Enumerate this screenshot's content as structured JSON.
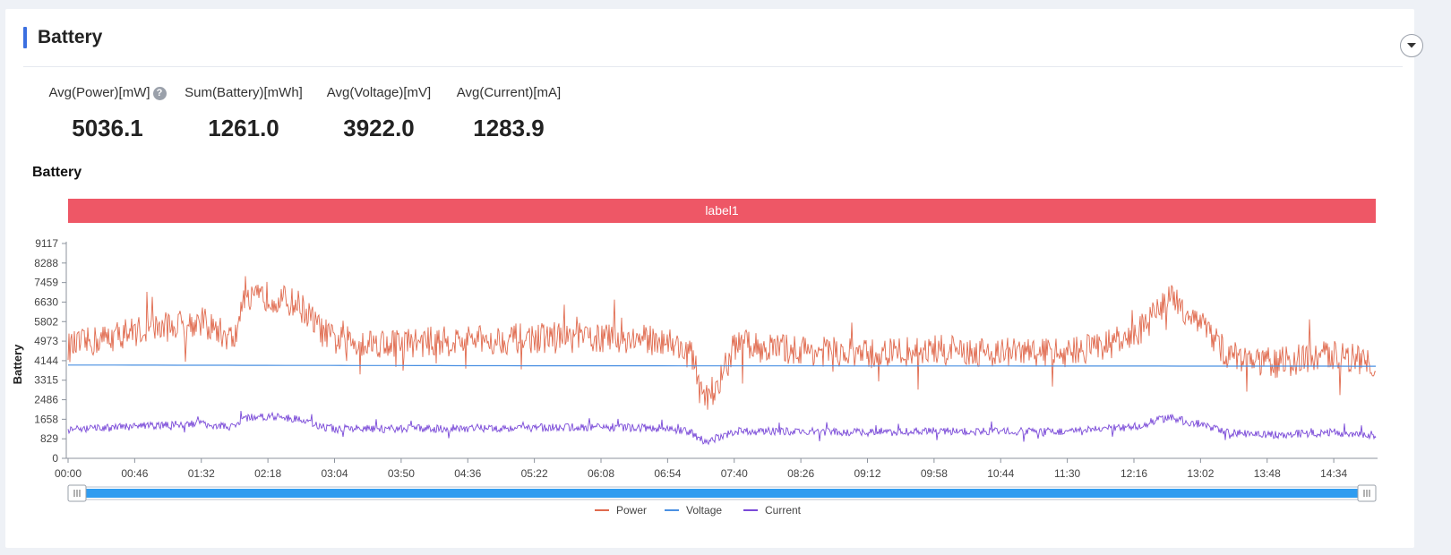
{
  "card": {
    "title": "Battery"
  },
  "stats": [
    {
      "label": "Avg(Power)[mW]",
      "value": "5036.1",
      "help": true
    },
    {
      "label": "Sum(Battery)[mWh]",
      "value": "1261.0"
    },
    {
      "label": "Avg(Voltage)[mV]",
      "value": "3922.0"
    },
    {
      "label": "Avg(Current)[mA]",
      "value": "1283.9"
    }
  ],
  "help_icon_glyph": "?",
  "chart_title": "Battery",
  "chart_data": {
    "type": "line",
    "title": "Battery",
    "ylabel": "Battery",
    "xlabel": "",
    "band_label": "label1",
    "band_color": "#ee5766",
    "y_ticks": [
      "0",
      "829",
      "1658",
      "2486",
      "3315",
      "4144",
      "4973",
      "5802",
      "6630",
      "7459",
      "8288",
      "9117"
    ],
    "ylim": [
      0,
      9117
    ],
    "x_ticks": [
      "00:00",
      "00:46",
      "01:32",
      "02:18",
      "03:04",
      "03:50",
      "04:36",
      "05:22",
      "06:08",
      "06:54",
      "07:40",
      "08:26",
      "09:12",
      "09:58",
      "10:44",
      "11:30",
      "12:16",
      "13:02",
      "13:48",
      "14:34"
    ],
    "x_range_minutes": [
      0,
      903
    ],
    "legend": [
      "Power",
      "Voltage",
      "Current"
    ],
    "legend_position": "bottom-center",
    "grid": false,
    "series": [
      {
        "name": "Power",
        "color": "#e06a4e",
        "noise": 650,
        "minutes": [
          0,
          46,
          92,
          115,
          120,
          138,
          160,
          175,
          184,
          220,
          230,
          276,
          322,
          368,
          414,
          430,
          440,
          450,
          460,
          480,
          506,
          552,
          598,
          644,
          690,
          736,
          760,
          782,
          800,
          828,
          874,
          903
        ],
        "values": [
          4700,
          5400,
          5800,
          5000,
          6500,
          6900,
          6500,
          5400,
          5000,
          4900,
          4900,
          5000,
          5100,
          5100,
          5000,
          4400,
          2600,
          3200,
          4800,
          4700,
          4600,
          4400,
          4600,
          4500,
          4500,
          5100,
          6800,
          5800,
          4400,
          4000,
          4400,
          4100
        ]
      },
      {
        "name": "Voltage",
        "color": "#4a90e2",
        "noise": 0,
        "minutes": [
          0,
          300,
          600,
          903
        ],
        "values": [
          3960,
          3930,
          3920,
          3910
        ]
      },
      {
        "name": "Current",
        "color": "#7a4ad8",
        "noise": 170,
        "minutes": [
          0,
          46,
          92,
          115,
          120,
          138,
          160,
          175,
          184,
          220,
          230,
          276,
          322,
          368,
          414,
          430,
          440,
          450,
          460,
          480,
          506,
          552,
          598,
          644,
          690,
          736,
          760,
          782,
          800,
          828,
          874,
          903
        ],
        "values": [
          1200,
          1350,
          1480,
          1300,
          1700,
          1800,
          1650,
          1350,
          1250,
          1250,
          1250,
          1280,
          1300,
          1320,
          1280,
          1100,
          700,
          900,
          1150,
          1150,
          1130,
          1100,
          1150,
          1140,
          1140,
          1330,
          1750,
          1400,
          1100,
          1000,
          1100,
          1000
        ]
      }
    ]
  }
}
